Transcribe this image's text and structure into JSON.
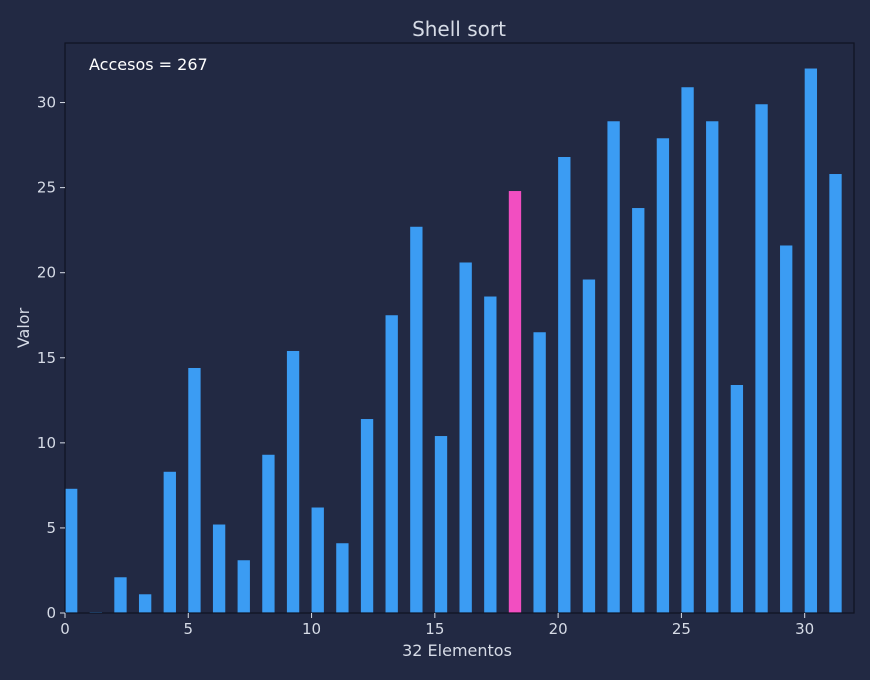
{
  "chart_data": {
    "type": "bar",
    "title": "Shell sort",
    "xlabel": "32 Elementos",
    "ylabel": "Valor",
    "annotation": "Accesos = 267",
    "xlim": [
      0,
      32
    ],
    "ylim": [
      0,
      33.5
    ],
    "xticks": [
      0,
      5,
      10,
      15,
      20,
      25,
      30
    ],
    "yticks": [
      0,
      5,
      10,
      15,
      20,
      25,
      30
    ],
    "x": [
      0,
      1,
      2,
      3,
      4,
      5,
      6,
      7,
      8,
      9,
      10,
      11,
      12,
      13,
      14,
      15,
      16,
      17,
      18,
      19,
      20,
      21,
      22,
      23,
      24,
      25,
      26,
      27,
      28,
      29,
      30,
      31
    ],
    "values": [
      7.3,
      0.05,
      2.1,
      1.1,
      8.3,
      14.4,
      5.2,
      3.1,
      9.3,
      15.4,
      6.2,
      4.1,
      11.4,
      17.5,
      22.7,
      10.4,
      20.6,
      18.6,
      24.8,
      16.5,
      26.8,
      19.6,
      28.9,
      23.8,
      27.9,
      30.9,
      28.9,
      13.4,
      29.9,
      21.6,
      32.0,
      25.8
    ],
    "highlight_index": 18,
    "colors": {
      "background": "#222943",
      "bar": "#3b9cf3",
      "highlight": "#f24ec1",
      "axes": "#0f1322",
      "text": "#d6dbe6"
    }
  }
}
